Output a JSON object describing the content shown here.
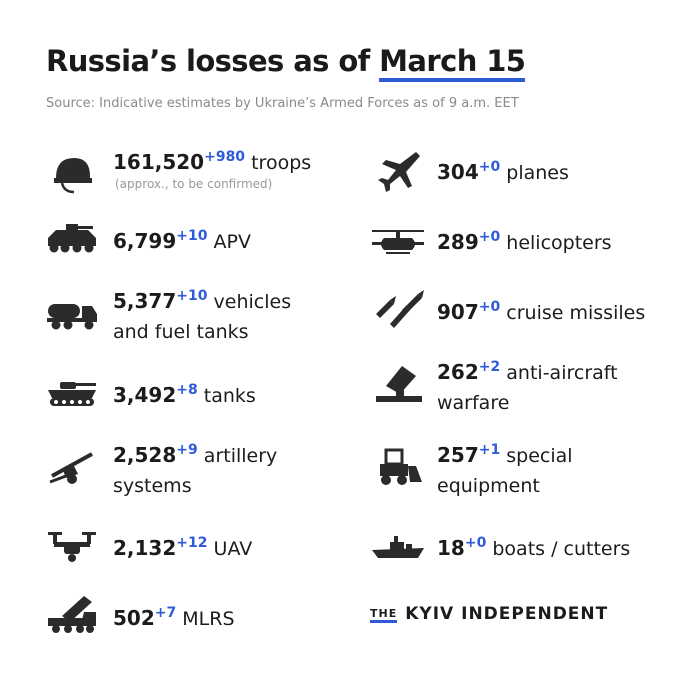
{
  "title": {
    "prefix": "Russia’s losses  as of ",
    "date": "March 15"
  },
  "source": "Source: Indicative estimates by Ukraine’s Armed Forces as of 9 a.m. EET",
  "colors": {
    "accent": "#2f5bd8",
    "text": "#1c1c1c",
    "muted": "#8a8a8a"
  },
  "left": [
    {
      "icon": "helmet-icon",
      "value": "161,520",
      "delta": "+980",
      "label": "troops",
      "note": "(approx., to be confirmed)"
    },
    {
      "icon": "apv-icon",
      "value": "6,799",
      "delta": "+10",
      "label": "APV"
    },
    {
      "icon": "fuel-truck-icon",
      "value": "5,377",
      "delta": "+10",
      "label": "vehicles",
      "label2": "and fuel tanks"
    },
    {
      "icon": "tank-icon",
      "value": "3,492",
      "delta": "+8",
      "label": "tanks"
    },
    {
      "icon": "artillery-icon",
      "value": "2,528",
      "delta": "+9",
      "label": "artillery",
      "label2": "systems"
    },
    {
      "icon": "drone-icon",
      "value": "2,132",
      "delta": "+12",
      "label": "UAV"
    },
    {
      "icon": "mlrs-icon",
      "value": "502",
      "delta": "+7",
      "label": "MLRS"
    }
  ],
  "right": [
    {
      "icon": "plane-icon",
      "value": "304",
      "delta": "+0",
      "label": "planes"
    },
    {
      "icon": "helicopter-icon",
      "value": "289",
      "delta": "+0",
      "label": "helicopters"
    },
    {
      "icon": "missiles-icon",
      "value": "907",
      "delta": "+0",
      "label": "cruise missiles"
    },
    {
      "icon": "anti-aircraft-icon",
      "value": "262",
      "delta": "+2",
      "label": "anti-aircraft",
      "label2": "warfare"
    },
    {
      "icon": "bulldozer-icon",
      "value": "257",
      "delta": "+1",
      "label": "special",
      "label2": "equipment"
    },
    {
      "icon": "boat-icon",
      "value": "18",
      "delta": "+0",
      "label": "boats / cutters"
    }
  ],
  "footer": {
    "the": "THE",
    "name": "KYIV INDEPENDENT"
  }
}
